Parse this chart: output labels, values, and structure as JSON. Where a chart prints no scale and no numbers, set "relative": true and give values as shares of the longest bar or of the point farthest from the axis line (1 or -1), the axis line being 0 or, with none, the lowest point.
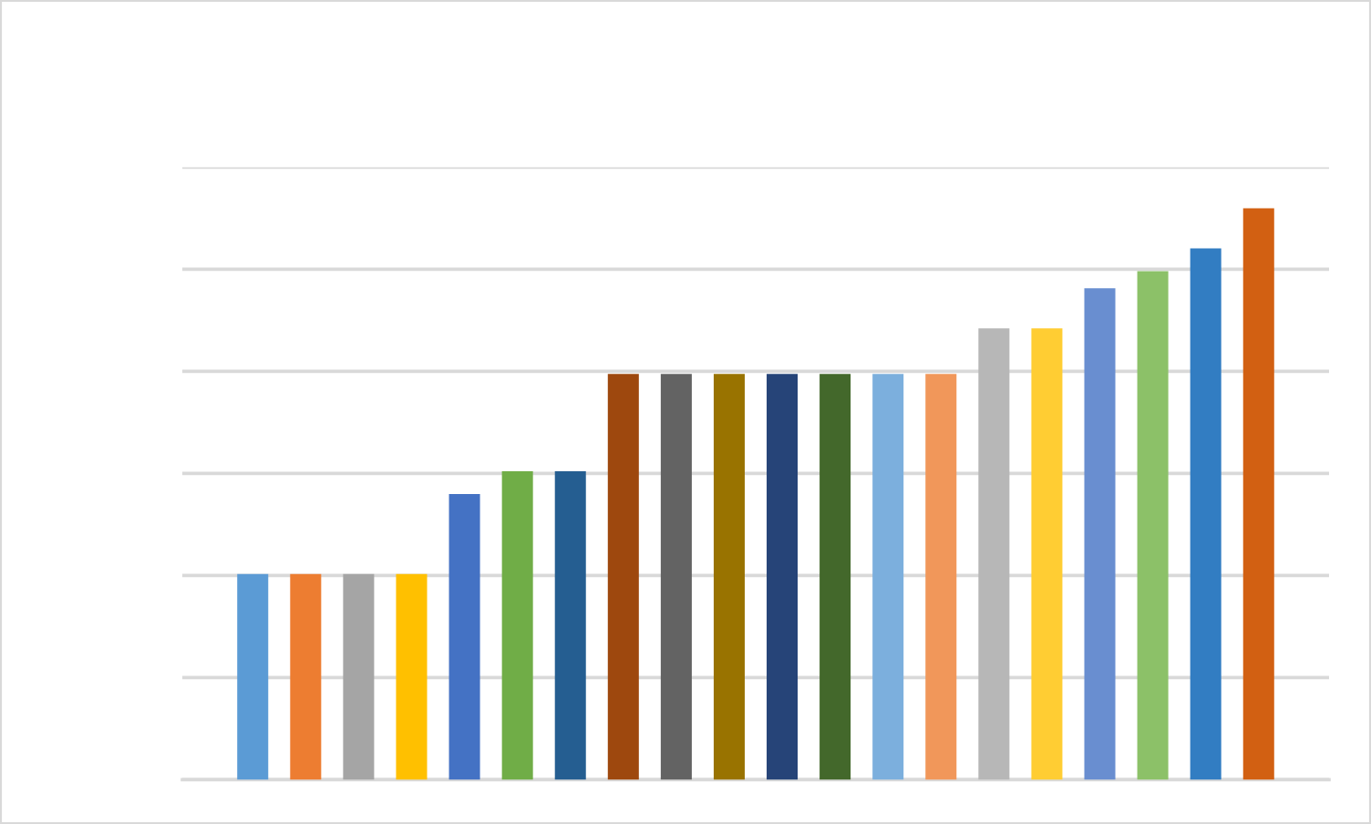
{
  "chart_data": {
    "type": "bar",
    "relative": true,
    "grid": "y",
    "categories": [
      null,
      null,
      null,
      null,
      null,
      null,
      null,
      null,
      null,
      null,
      null,
      null,
      null,
      null,
      null,
      null,
      null,
      null,
      null,
      null
    ],
    "values": [
      0.36,
      0.36,
      0.36,
      0.36,
      0.5,
      0.54,
      0.54,
      0.71,
      0.71,
      0.71,
      0.71,
      0.71,
      0.71,
      0.71,
      0.79,
      0.79,
      0.86,
      0.89,
      0.93,
      1
    ],
    "colors": [
      "#5b9bd5",
      "#ed7d31",
      "#a5a5a5",
      "#ffc000",
      "#4472c4",
      "#70ad47",
      "#255e91",
      "#9e480e",
      "#636363",
      "#997300",
      "#264478",
      "#43682b",
      "#7cafdd",
      "#f1975a",
      "#b7b7b7",
      "#ffcd33",
      "#698ed0",
      "#8cc168",
      "#327dc2",
      "#d26012"
    ]
  }
}
